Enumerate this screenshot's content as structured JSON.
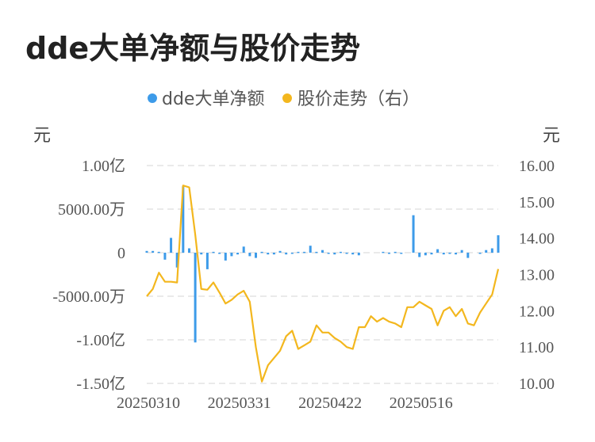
{
  "title": "dde大单净额与股价走势",
  "chart_data": {
    "type": "bar+line",
    "legend": [
      {
        "name": "dde大单净额",
        "color": "#3d9be9"
      },
      {
        "name": "股价走势（右）",
        "color": "#f3b71e"
      }
    ],
    "left_unit": "元",
    "right_unit": "元",
    "left_ticks": [
      {
        "value": 100000000,
        "label": "1.00亿"
      },
      {
        "value": 50000000,
        "label": "5000.00万"
      },
      {
        "value": 0,
        "label": "0"
      },
      {
        "value": -50000000,
        "label": "-5000.00万"
      },
      {
        "value": -100000000,
        "label": "-1.00亿"
      },
      {
        "value": -150000000,
        "label": "-1.50亿"
      }
    ],
    "right_ticks": [
      "16.00",
      "15.00",
      "14.00",
      "13.00",
      "12.00",
      "11.00",
      "10.00"
    ],
    "left_range": [
      -150000000,
      100000000
    ],
    "right_range": [
      10,
      16
    ],
    "x_labels": [
      {
        "index": 0,
        "label": "20250310"
      },
      {
        "index": 15,
        "label": "20250331"
      },
      {
        "index": 30,
        "label": "20250422"
      },
      {
        "index": 45,
        "label": "20250516"
      }
    ],
    "series": [
      {
        "name": "dde大单净额",
        "type": "bar",
        "values": [
          2000000,
          2000000,
          1000000,
          -8000000,
          17000000,
          -17000000,
          76000000,
          5000000,
          -103000000,
          -2000000,
          -19000000,
          1000000,
          -1000000,
          -9000000,
          -4000000,
          -2000000,
          7000000,
          -4000000,
          -6000000,
          1000000,
          -2000000,
          -2000000,
          2000000,
          -2000000,
          -1000000,
          1000000,
          1000000,
          8000000,
          1000000,
          3000000,
          -1000000,
          -2000000,
          1000000,
          -1000000,
          -2000000,
          -3000000,
          0,
          0,
          0,
          1000000,
          -1000000,
          1000000,
          -1000000,
          0,
          43000000,
          -5000000,
          -3000000,
          -2000000,
          4000000,
          -2000000,
          -1000000,
          -2000000,
          3000000,
          -6000000,
          0,
          -1000000,
          3000000,
          5000000,
          20000000
        ]
      },
      {
        "name": "股价走势（右）",
        "type": "line",
        "values": [
          12.4,
          12.6,
          13.05,
          12.8,
          12.8,
          12.78,
          15.45,
          15.4,
          14.1,
          12.6,
          12.58,
          12.78,
          12.5,
          12.2,
          12.3,
          12.45,
          12.55,
          12.25,
          11.0,
          10.05,
          10.5,
          10.7,
          10.9,
          11.3,
          11.45,
          10.95,
          11.05,
          11.15,
          11.6,
          11.4,
          11.4,
          11.25,
          11.15,
          11.0,
          10.95,
          11.55,
          11.55,
          11.85,
          11.7,
          11.8,
          11.7,
          11.65,
          11.55,
          12.1,
          12.1,
          12.25,
          12.15,
          12.05,
          11.6,
          12.0,
          12.1,
          11.85,
          12.05,
          11.65,
          11.6,
          11.95,
          12.2,
          12.45,
          13.15
        ]
      }
    ]
  }
}
